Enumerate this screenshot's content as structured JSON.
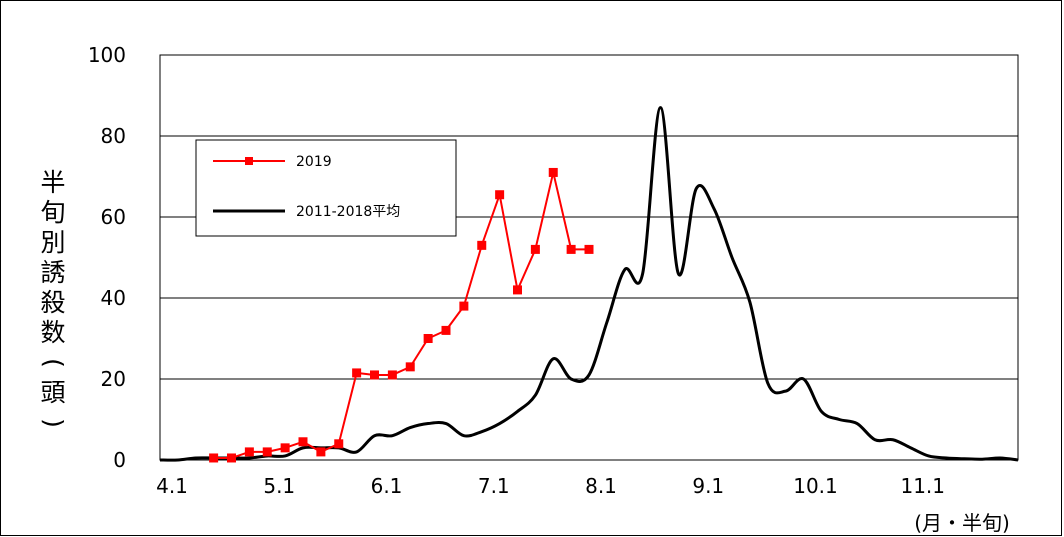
{
  "chart_data": {
    "type": "line",
    "xlabel": "(月・半旬)",
    "ylabel": "半旬別誘殺数(頭)",
    "ylim": [
      0,
      100
    ],
    "yticks": [
      "0",
      "20",
      "40",
      "60",
      "80",
      "100"
    ],
    "xlim": [
      0,
      48
    ],
    "xtick_labels": [
      {
        "label": "4.1",
        "x": 0
      },
      {
        "label": "5.1",
        "x": 6
      },
      {
        "label": "6.1",
        "x": 12
      },
      {
        "label": "7.1",
        "x": 18
      },
      {
        "label": "8.1",
        "x": 24
      },
      {
        "label": "9.1",
        "x": 30
      },
      {
        "label": "10.1",
        "x": 36
      },
      {
        "label": "11.1",
        "x": 42
      }
    ],
    "grid": "horizontal",
    "legend": "top-left",
    "series": [
      {
        "name": "2019",
        "color": "#ff0000",
        "marker": "square",
        "x": [
          3,
          4,
          5,
          6,
          7,
          8,
          9,
          10,
          11,
          12,
          13,
          14,
          15,
          16,
          17,
          18,
          19,
          20,
          21,
          22,
          23,
          24
        ],
        "values": [
          0.5,
          0.5,
          2,
          2,
          3,
          4.5,
          2,
          4,
          21.5,
          21,
          21,
          23,
          30,
          32,
          38,
          53,
          65.5,
          42,
          52,
          71,
          52,
          52
        ]
      },
      {
        "name": "2011-2018平均",
        "color": "#000000",
        "marker": "none",
        "smooth": true,
        "x": [
          0,
          1,
          2,
          3,
          4,
          5,
          6,
          7,
          8,
          9,
          10,
          11,
          12,
          13,
          14,
          15,
          16,
          17,
          18,
          19,
          20,
          21,
          22,
          23,
          24,
          25,
          26,
          27,
          28,
          29,
          30,
          31,
          32,
          33,
          34,
          35,
          36,
          37,
          38,
          39,
          40,
          41,
          42,
          43,
          44,
          45,
          46,
          47,
          48
        ],
        "values": [
          0,
          0,
          0.5,
          0.5,
          0.5,
          0.5,
          1,
          1,
          3,
          3,
          3,
          2,
          6,
          6,
          8,
          9,
          9,
          6,
          7,
          9,
          12,
          16,
          25,
          20,
          21,
          34,
          47,
          46,
          87,
          46,
          67,
          62,
          50,
          39,
          19,
          17,
          20,
          12,
          10,
          9,
          5,
          5,
          3,
          1,
          0.5,
          0.3,
          0.2,
          0.5,
          0
        ]
      }
    ]
  }
}
